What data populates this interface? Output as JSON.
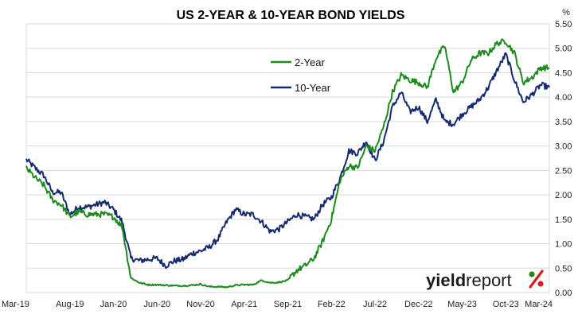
{
  "chart_data": {
    "type": "line",
    "title": "US 2-YEAR & 10-YEAR BOND YIELDS",
    "ylabel": "%",
    "ylim": [
      0,
      5.5
    ],
    "y_ticks": [
      "0.00",
      "0.50",
      "1.00",
      "1.50",
      "2.00",
      "2.50",
      "3.00",
      "3.50",
      "4.00",
      "4.50",
      "5.00",
      "5.50"
    ],
    "x_range": [
      "2019-03",
      "2024-03"
    ],
    "x_ticks": [
      "Mar-19",
      "Aug-19",
      "Jan-20",
      "Jun-20",
      "Nov-20",
      "Apr-21",
      "Sep-21",
      "Feb-22",
      "Jul-22",
      "Dec-22",
      "May-23",
      "Oct-23",
      "Mar-24"
    ],
    "grid": true,
    "legend_position": "upper-center",
    "series": [
      {
        "name": "2-Year",
        "color": "#1e8a1e",
        "points": [
          [
            "2019-03",
            2.55
          ],
          [
            "2019-04",
            2.35
          ],
          [
            "2019-05",
            2.2
          ],
          [
            "2019-06",
            1.9
          ],
          [
            "2019-07",
            1.8
          ],
          [
            "2019-08",
            1.55
          ],
          [
            "2019-09",
            1.65
          ],
          [
            "2019-10",
            1.6
          ],
          [
            "2019-11",
            1.6
          ],
          [
            "2019-12",
            1.6
          ],
          [
            "2020-01",
            1.55
          ],
          [
            "2020-02",
            1.35
          ],
          [
            "2020-03",
            0.3
          ],
          [
            "2020-04",
            0.2
          ],
          [
            "2020-05",
            0.16
          ],
          [
            "2020-06",
            0.16
          ],
          [
            "2020-07",
            0.15
          ],
          [
            "2020-08",
            0.14
          ],
          [
            "2020-09",
            0.14
          ],
          [
            "2020-10",
            0.15
          ],
          [
            "2020-11",
            0.17
          ],
          [
            "2020-12",
            0.12
          ],
          [
            "2021-01",
            0.12
          ],
          [
            "2021-02",
            0.11
          ],
          [
            "2021-03",
            0.15
          ],
          [
            "2021-04",
            0.16
          ],
          [
            "2021-05",
            0.16
          ],
          [
            "2021-06",
            0.25
          ],
          [
            "2021-07",
            0.2
          ],
          [
            "2021-08",
            0.21
          ],
          [
            "2021-09",
            0.25
          ],
          [
            "2021-10",
            0.45
          ],
          [
            "2021-11",
            0.55
          ],
          [
            "2021-12",
            0.7
          ],
          [
            "2022-01",
            1.05
          ],
          [
            "2022-02",
            1.5
          ],
          [
            "2022-03",
            2.3
          ],
          [
            "2022-04",
            2.6
          ],
          [
            "2022-05",
            2.55
          ],
          [
            "2022-06",
            3.0
          ],
          [
            "2022-07",
            2.9
          ],
          [
            "2022-08",
            3.4
          ],
          [
            "2022-09",
            4.1
          ],
          [
            "2022-10",
            4.45
          ],
          [
            "2022-11",
            4.35
          ],
          [
            "2022-12",
            4.3
          ],
          [
            "2023-01",
            4.2
          ],
          [
            "2023-02",
            4.8
          ],
          [
            "2023-03",
            5.05
          ],
          [
            "2023-04",
            4.1
          ],
          [
            "2023-05",
            4.3
          ],
          [
            "2023-06",
            4.75
          ],
          [
            "2023-07",
            4.9
          ],
          [
            "2023-08",
            4.9
          ],
          [
            "2023-09",
            5.1
          ],
          [
            "2023-10",
            5.15
          ],
          [
            "2023-11",
            4.9
          ],
          [
            "2023-12",
            4.3
          ],
          [
            "2024-01",
            4.4
          ],
          [
            "2024-02",
            4.6
          ],
          [
            "2024-03",
            4.6
          ]
        ]
      },
      {
        "name": "10-Year",
        "color": "#142b6f",
        "points": [
          [
            "2019-03",
            2.72
          ],
          [
            "2019-04",
            2.55
          ],
          [
            "2019-05",
            2.4
          ],
          [
            "2019-06",
            2.05
          ],
          [
            "2019-07",
            2.05
          ],
          [
            "2019-08",
            1.6
          ],
          [
            "2019-09",
            1.75
          ],
          [
            "2019-10",
            1.75
          ],
          [
            "2019-11",
            1.8
          ],
          [
            "2019-12",
            1.85
          ],
          [
            "2020-01",
            1.7
          ],
          [
            "2020-02",
            1.45
          ],
          [
            "2020-03",
            0.7
          ],
          [
            "2020-04",
            0.65
          ],
          [
            "2020-05",
            0.68
          ],
          [
            "2020-06",
            0.7
          ],
          [
            "2020-07",
            0.55
          ],
          [
            "2020-08",
            0.65
          ],
          [
            "2020-09",
            0.68
          ],
          [
            "2020-10",
            0.8
          ],
          [
            "2020-11",
            0.85
          ],
          [
            "2020-12",
            0.93
          ],
          [
            "2021-01",
            1.1
          ],
          [
            "2021-02",
            1.45
          ],
          [
            "2021-03",
            1.7
          ],
          [
            "2021-04",
            1.6
          ],
          [
            "2021-05",
            1.6
          ],
          [
            "2021-06",
            1.45
          ],
          [
            "2021-07",
            1.25
          ],
          [
            "2021-08",
            1.3
          ],
          [
            "2021-09",
            1.45
          ],
          [
            "2021-10",
            1.6
          ],
          [
            "2021-11",
            1.55
          ],
          [
            "2021-12",
            1.5
          ],
          [
            "2022-01",
            1.8
          ],
          [
            "2022-02",
            1.95
          ],
          [
            "2022-03",
            2.35
          ],
          [
            "2022-04",
            2.9
          ],
          [
            "2022-05",
            2.85
          ],
          [
            "2022-06",
            3.1
          ],
          [
            "2022-07",
            2.7
          ],
          [
            "2022-08",
            3.1
          ],
          [
            "2022-09",
            3.8
          ],
          [
            "2022-10",
            4.1
          ],
          [
            "2022-11",
            3.7
          ],
          [
            "2022-12",
            3.8
          ],
          [
            "2023-01",
            3.5
          ],
          [
            "2023-02",
            3.95
          ],
          [
            "2023-03",
            3.5
          ],
          [
            "2023-04",
            3.45
          ],
          [
            "2023-05",
            3.65
          ],
          [
            "2023-06",
            3.8
          ],
          [
            "2023-07",
            3.95
          ],
          [
            "2023-08",
            4.2
          ],
          [
            "2023-09",
            4.55
          ],
          [
            "2023-10",
            4.88
          ],
          [
            "2023-11",
            4.35
          ],
          [
            "2023-12",
            3.9
          ],
          [
            "2024-01",
            4.05
          ],
          [
            "2024-02",
            4.25
          ],
          [
            "2024-03",
            4.2
          ]
        ]
      }
    ]
  }
}
